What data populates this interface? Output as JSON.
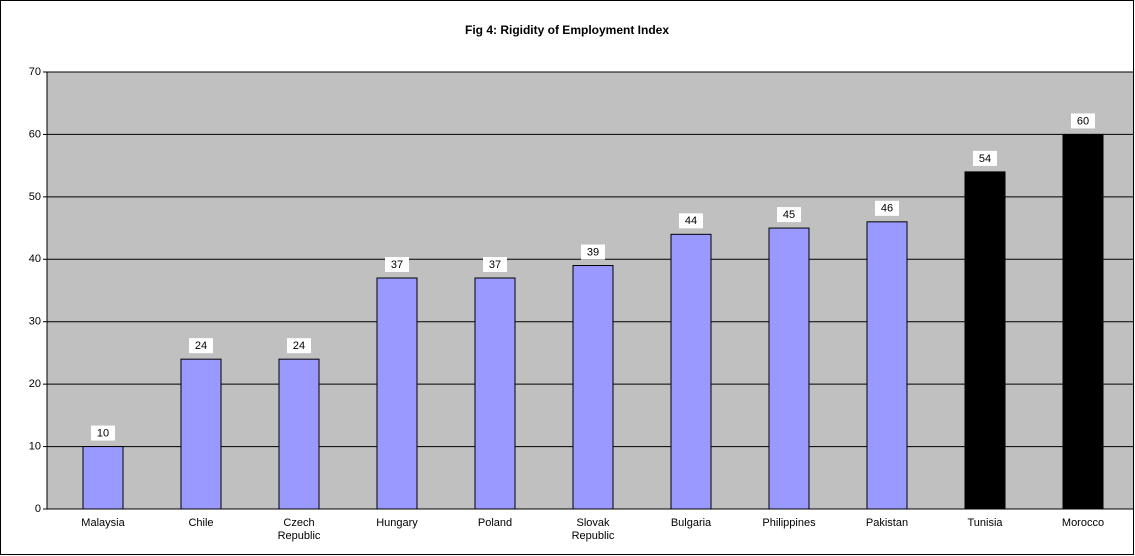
{
  "chart_data": {
    "type": "bar",
    "title": "Fig 4: Rigidity of Employment Index",
    "categories": [
      "Malaysia",
      "Chile",
      "Czech Republic",
      "Hungary",
      "Poland",
      "Slovak Republic",
      "Bulgaria",
      "Philippines",
      "Pakistan",
      "Tunisia",
      "Morocco"
    ],
    "values": [
      10,
      24,
      24,
      37,
      37,
      39,
      44,
      45,
      46,
      54,
      60
    ],
    "colors": [
      "#9999ff",
      "#9999ff",
      "#9999ff",
      "#9999ff",
      "#9999ff",
      "#9999ff",
      "#9999ff",
      "#9999ff",
      "#9999ff",
      "#000000",
      "#000000"
    ],
    "ylim": [
      0,
      70
    ],
    "yticks": [
      0,
      10,
      20,
      30,
      40,
      50,
      60,
      70
    ],
    "grid": true
  }
}
